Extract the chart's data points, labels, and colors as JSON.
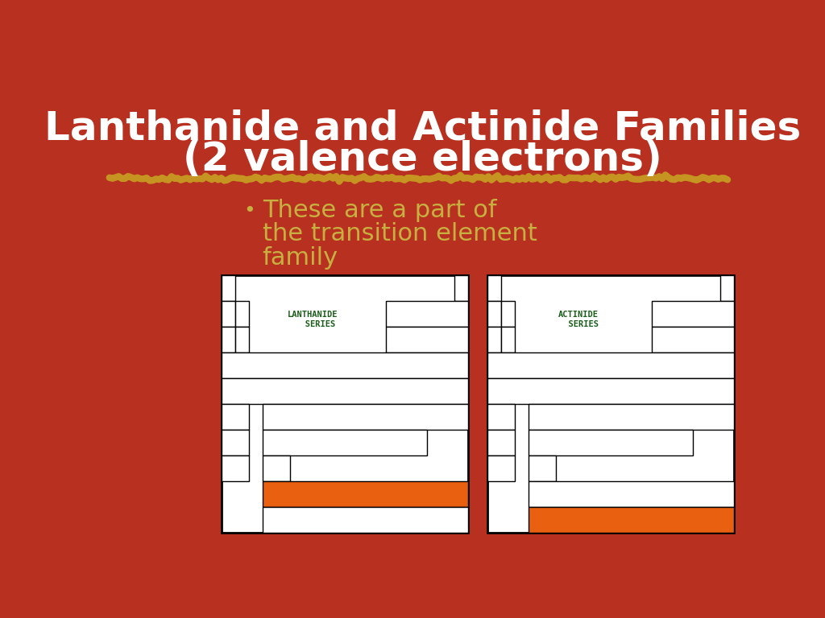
{
  "title_line1": "Lanthanide and Actinide Families",
  "title_line2": "(2 valence electrons)",
  "title_color": "#FFFFFF",
  "title_fontsize": 36,
  "bg_color": "#B83020",
  "bullet_text_line1": "These are a part of",
  "bullet_text_line2": "the transition element",
  "bullet_text_line3": "family",
  "bullet_color": "#C8B040",
  "bullet_fontsize": 22,
  "label_lanthanide": "LANTHANIDE\n   SERIES",
  "label_actinide": "ACTINIDE\n  SERIES",
  "label_color": "#1A5C1A",
  "orange_color": "#E86010",
  "divider_color": "#C8A020"
}
